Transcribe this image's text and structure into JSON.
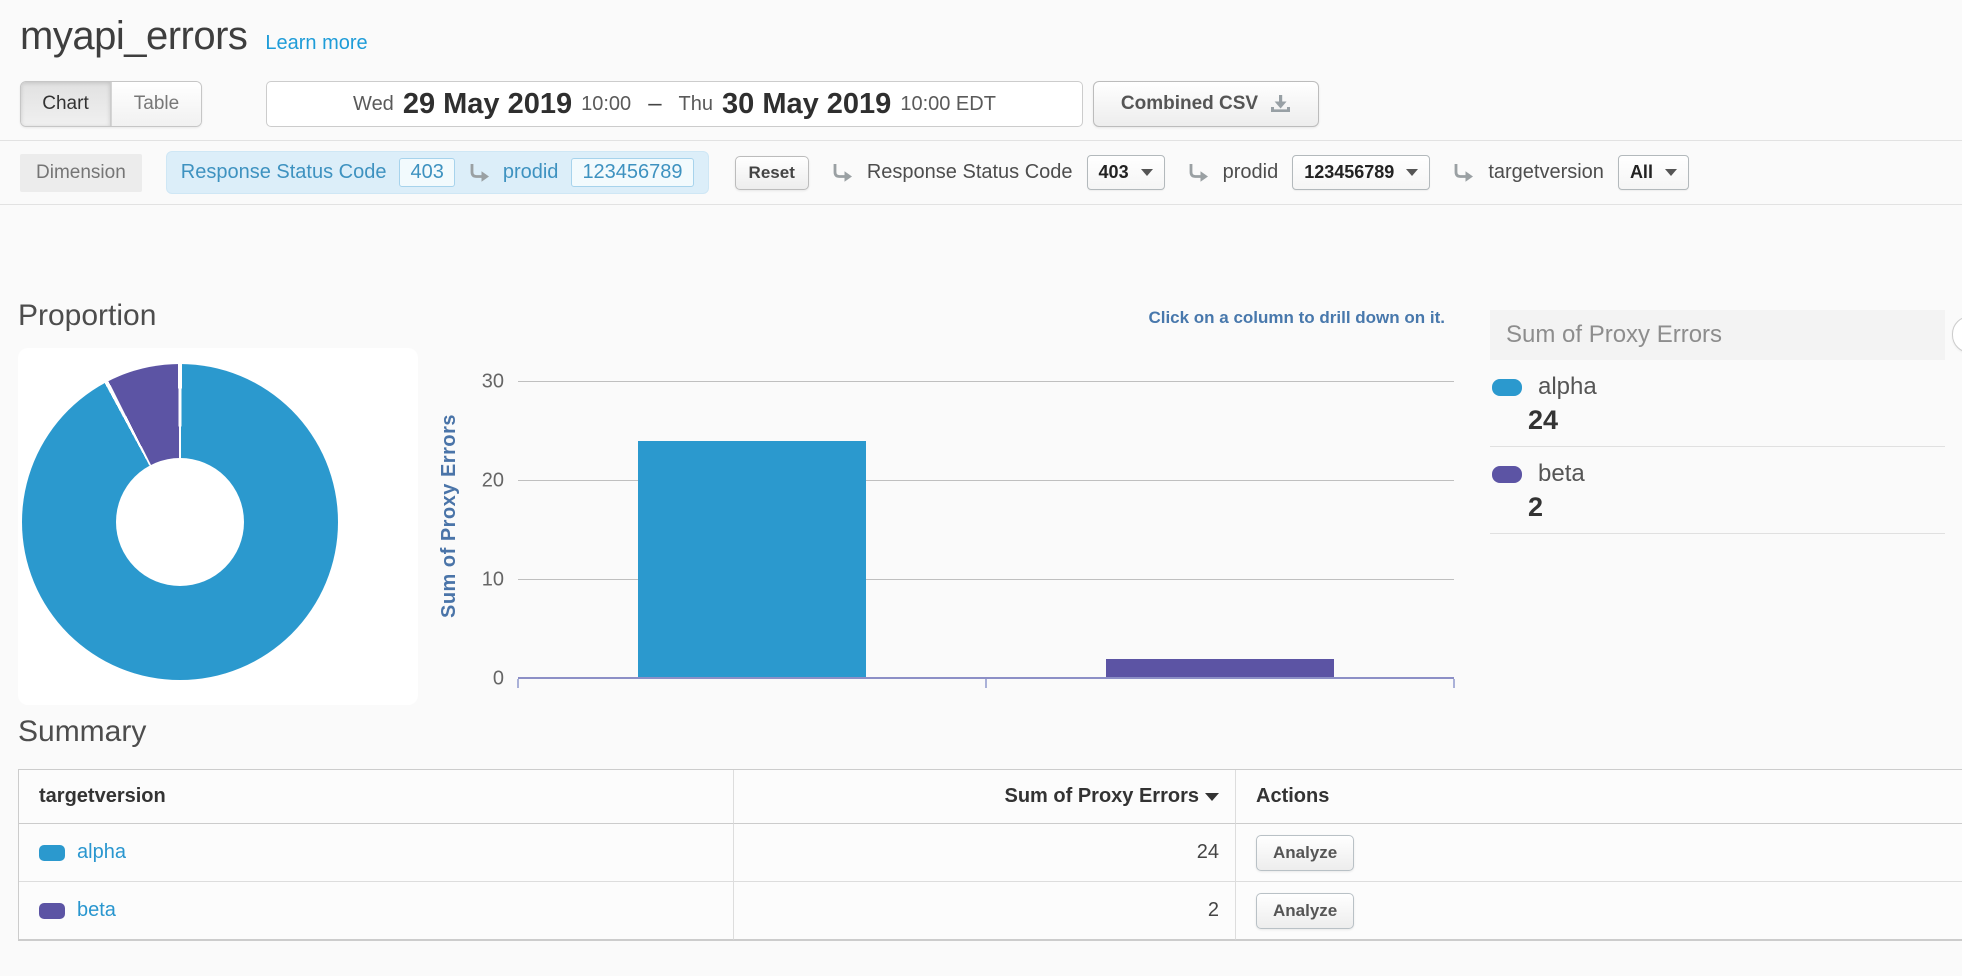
{
  "colors": {
    "primary_blue": "#2b99ce",
    "purple": "#5c54a4",
    "link_blue": "#1e9cd8",
    "hint_blue": "#4878ac"
  },
  "page": {
    "title": "myapi_errors",
    "learn_more_link": "Learn more"
  },
  "toolbar": {
    "view_toggle": {
      "chart_label": "Chart",
      "table_label": "Table",
      "selected": "Chart"
    },
    "date_range": {
      "start_day": "Wed",
      "start_date": "29 May 2019",
      "start_time": "10:00",
      "separator": "–",
      "end_day": "Thu",
      "end_date": "30 May 2019",
      "end_time": "10:00 EDT"
    },
    "export_label": "Combined CSV"
  },
  "dimension_bar": {
    "label": "Dimension",
    "breadcrumb": {
      "filters": [
        {
          "name": "Response Status Code",
          "value": "403"
        },
        {
          "name": "prodid",
          "value": "123456789"
        }
      ],
      "reset_label": "Reset"
    },
    "selectors": [
      {
        "name": "Response Status Code",
        "value": "403"
      },
      {
        "name": "prodid",
        "value": "123456789"
      },
      {
        "name": "targetversion",
        "value": "All"
      }
    ]
  },
  "proportion": {
    "title": "Proportion"
  },
  "bar_chart": {
    "hint": "Click on a column to drill down on it.",
    "ylabel": "Sum of Proxy Errors"
  },
  "legend": {
    "title": "Sum of Proxy Errors",
    "items": [
      {
        "label": "alpha",
        "value": "24",
        "color": "#2b99ce"
      },
      {
        "label": "beta",
        "value": "2",
        "color": "#5c54a4"
      }
    ]
  },
  "summary": {
    "title": "Summary",
    "columns": {
      "c1": "targetversion",
      "c2": "Sum of Proxy Errors",
      "c3": "Actions"
    },
    "rows": [
      {
        "label": "alpha",
        "value": "24",
        "action": "Analyze",
        "color": "#2b99ce"
      },
      {
        "label": "beta",
        "value": "2",
        "action": "Analyze",
        "color": "#5c54a4"
      }
    ]
  },
  "chart_data": [
    {
      "type": "pie",
      "subtype": "donut",
      "title": "Proportion",
      "categories": [
        "alpha",
        "beta"
      ],
      "values": [
        24,
        2
      ],
      "colors": [
        "#2b99ce",
        "#5c54a4"
      ],
      "legend_position": "right"
    },
    {
      "type": "bar",
      "categories": [
        "alpha",
        "beta"
      ],
      "values": [
        24,
        2
      ],
      "colors": [
        "#2b99ce",
        "#5c54a4"
      ],
      "title": "",
      "xlabel": "",
      "ylabel": "Sum of Proxy Errors",
      "yticks": [
        0,
        10,
        20,
        30
      ],
      "ylim": [
        0,
        33
      ],
      "grid": true,
      "annotation": "Click on a column to drill down on it."
    }
  ]
}
